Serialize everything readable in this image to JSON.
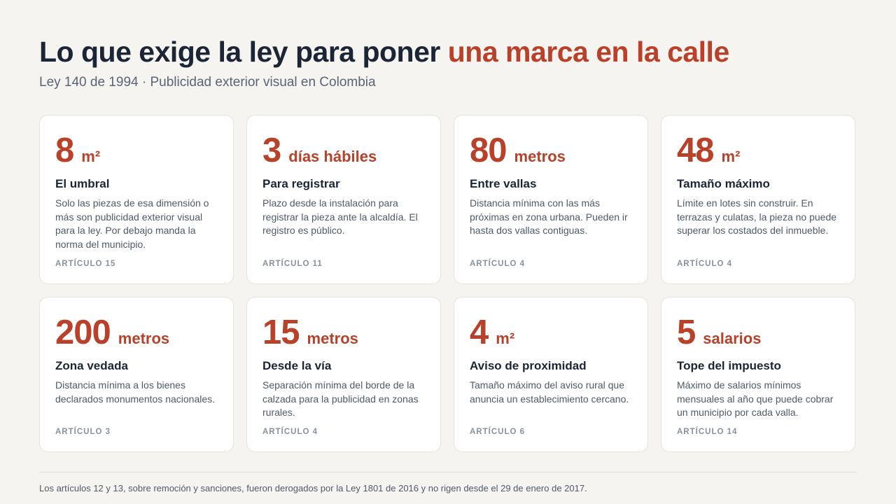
{
  "header": {
    "title_main": "Lo que exige la ley para poner ",
    "title_accent": "una marca en la calle",
    "subtitle": "Ley 140 de 1994 · Publicidad exterior visual en Colombia"
  },
  "cards": [
    {
      "number": "8",
      "unit": "m²",
      "heading": "El umbral",
      "description": "Solo las piezas de esa dimensión o más son publicidad exterior visual para la ley. Por debajo manda la norma del municipio.",
      "article": "ARTÍCULO 15"
    },
    {
      "number": "3",
      "unit": "días hábiles",
      "heading": "Para registrar",
      "description": "Plazo desde la instalación para registrar la pieza ante la alcaldía. El registro es público.",
      "article": "ARTÍCULO 11"
    },
    {
      "number": "80",
      "unit": "metros",
      "heading": "Entre vallas",
      "description": "Distancia mínima con las más próximas en zona urbana. Pueden ir hasta dos vallas contiguas.",
      "article": "ARTÍCULO 4"
    },
    {
      "number": "48",
      "unit": "m²",
      "heading": "Tamaño máximo",
      "description": "Límite en lotes sin construir. En terrazas y culatas, la pieza no puede superar los costados del inmueble.",
      "article": "ARTÍCULO 4"
    },
    {
      "number": "200",
      "unit": "metros",
      "heading": "Zona vedada",
      "description": "Distancia mínima a los bienes declarados monumentos nacionales.",
      "article": "ARTÍCULO 3"
    },
    {
      "number": "15",
      "unit": "metros",
      "heading": "Desde la vía",
      "description": "Separación mínima del borde de la calzada para la publicidad en zonas rurales.",
      "article": "ARTÍCULO 4"
    },
    {
      "number": "4",
      "unit": "m²",
      "heading": "Aviso de proximidad",
      "description": "Tamaño máximo del aviso rural que anuncia un establecimiento cercano.",
      "article": "ARTÍCULO 6"
    },
    {
      "number": "5",
      "unit": "salarios",
      "heading": "Tope del impuesto",
      "description": "Máximo de salarios mínimos mensuales al año que puede cobrar un municipio por cada valla.",
      "article": "ARTÍCULO 14"
    }
  ],
  "footer": {
    "note": "Los artículos 12 y 13, sobre remoción y sanciones, fueron derogados por la Ley 1801 de 2016 y no rigen desde el 29 de enero de 2017."
  },
  "colors": {
    "accent": "#b9412a",
    "text_dark": "#1b2536",
    "text_muted": "#4f5968",
    "background": "#f6f4f1",
    "card": "#ffffff"
  }
}
